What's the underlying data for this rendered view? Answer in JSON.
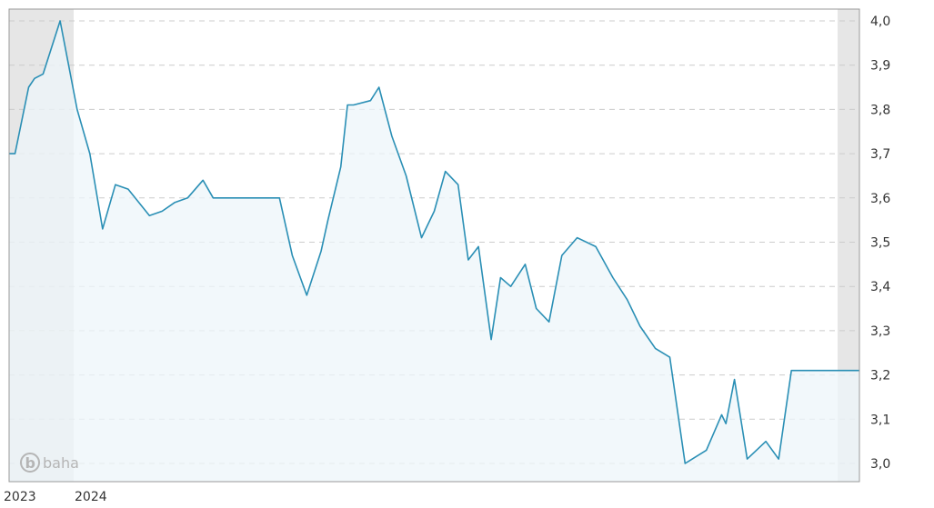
{
  "chart_data": {
    "type": "area",
    "title": "",
    "xlabel": "",
    "ylabel": "",
    "x_tick_labels": [
      "2023",
      "2024"
    ],
    "y_tick_labels": [
      "3,0",
      "3,1",
      "3,2",
      "3,3",
      "3,4",
      "3,5",
      "3,6",
      "3,7",
      "3,8",
      "3,9",
      "4,0"
    ],
    "ylim": [
      3.0,
      4.0
    ],
    "y_axis_position": "right",
    "grid": true,
    "watermark": "baha",
    "colors": {
      "line": "#2a8fb5",
      "fill": "#eef6f9",
      "shade": "#e6e6e6",
      "grid": "#cccccc",
      "border": "#999999",
      "shade_overlay": "#d3d9dc"
    },
    "series": [
      {
        "x": [
          0.0,
          0.007,
          0.023,
          0.03,
          0.04,
          0.06,
          0.08,
          0.095,
          0.11,
          0.125,
          0.14,
          0.165,
          0.18,
          0.195,
          0.21,
          0.228,
          0.24,
          0.26,
          0.283,
          0.303,
          0.318,
          0.333,
          0.35,
          0.367,
          0.375,
          0.39,
          0.398,
          0.405,
          0.425,
          0.435,
          0.45,
          0.467,
          0.485,
          0.5,
          0.513,
          0.528,
          0.54,
          0.552,
          0.567,
          0.578,
          0.59,
          0.607,
          0.62,
          0.635,
          0.65,
          0.668,
          0.69,
          0.71,
          0.727,
          0.742,
          0.76,
          0.777,
          0.795,
          0.82,
          0.838,
          0.843,
          0.853,
          0.868,
          0.89,
          0.905,
          0.92,
          0.935,
          0.952,
          0.968,
          0.985,
          1.0
        ],
        "y": [
          3.7,
          3.7,
          3.85,
          3.87,
          3.88,
          4.0,
          3.8,
          3.7,
          3.53,
          3.63,
          3.62,
          3.56,
          3.57,
          3.59,
          3.6,
          3.64,
          3.6,
          3.6,
          3.6,
          3.6,
          3.6,
          3.47,
          3.38,
          3.48,
          3.55,
          3.67,
          3.81,
          3.81,
          3.82,
          3.85,
          3.74,
          3.65,
          3.51,
          3.57,
          3.66,
          3.63,
          3.46,
          3.49,
          3.28,
          3.42,
          3.4,
          3.45,
          3.35,
          3.32,
          3.47,
          3.51,
          3.49,
          3.42,
          3.37,
          3.31,
          3.26,
          3.24,
          3.0,
          3.03,
          3.11,
          3.09,
          3.19,
          3.01,
          3.05,
          3.01,
          3.21,
          3.21,
          3.21,
          3.21,
          3.21,
          3.21
        ]
      }
    ]
  }
}
